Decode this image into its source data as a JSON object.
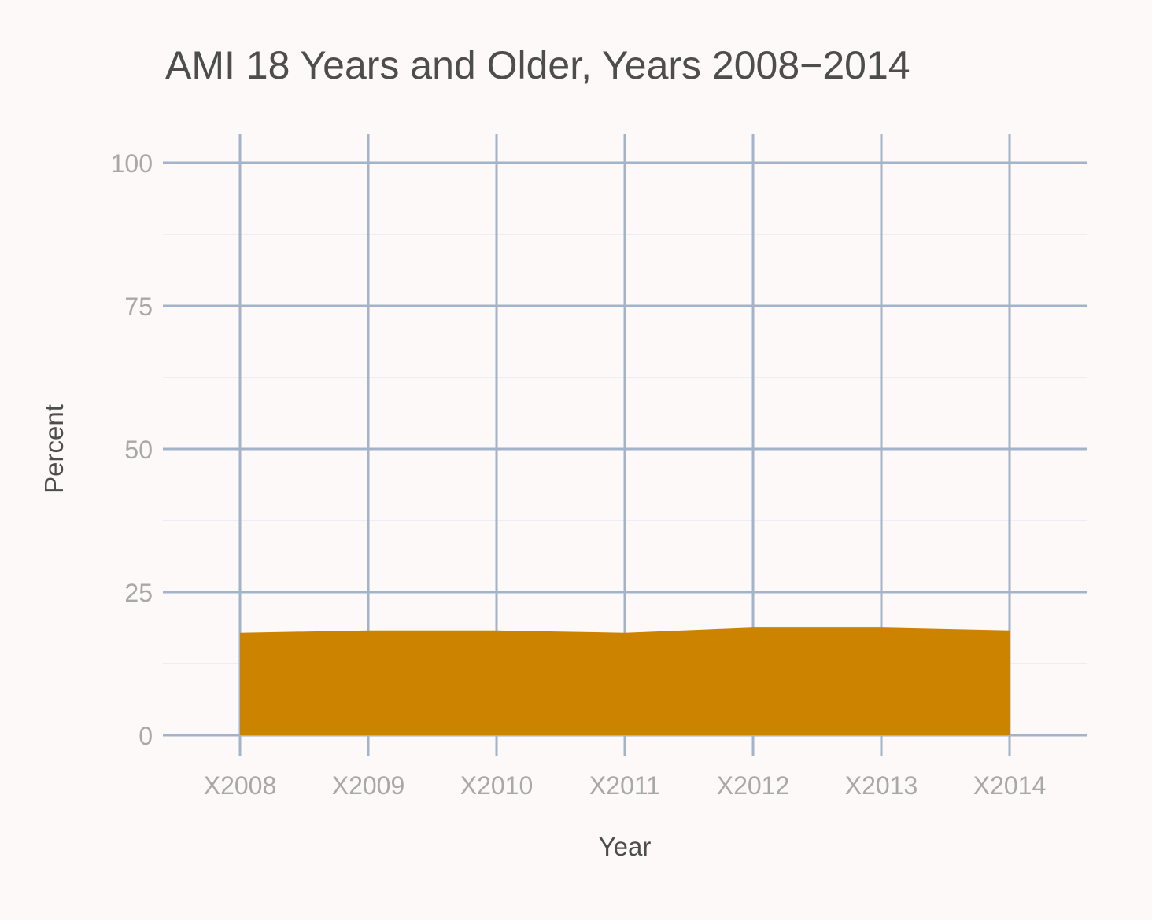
{
  "chart_data": {
    "type": "area",
    "title": "AMI 18 Years and Older, Years 2008−2014",
    "xlabel": "Year",
    "ylabel": "Percent",
    "categories": [
      "X2008",
      "X2009",
      "X2010",
      "X2011",
      "X2012",
      "X2013",
      "X2014"
    ],
    "series": [
      {
        "values": [
          17.9,
          18.3,
          18.3,
          17.9,
          18.8,
          18.8,
          18.3
        ]
      }
    ],
    "ylim": [
      0,
      100
    ],
    "yticks": [
      0,
      25,
      50,
      75,
      100
    ],
    "ytick_labels": [
      "0",
      "25",
      "50",
      "75",
      "100"
    ],
    "grid": true,
    "legend": "none",
    "colors": {
      "fill": "#cc8400",
      "grid_major": "#a3b3c9",
      "grid_minor": "#e1e8f2",
      "background": "#fcf9f8"
    }
  }
}
